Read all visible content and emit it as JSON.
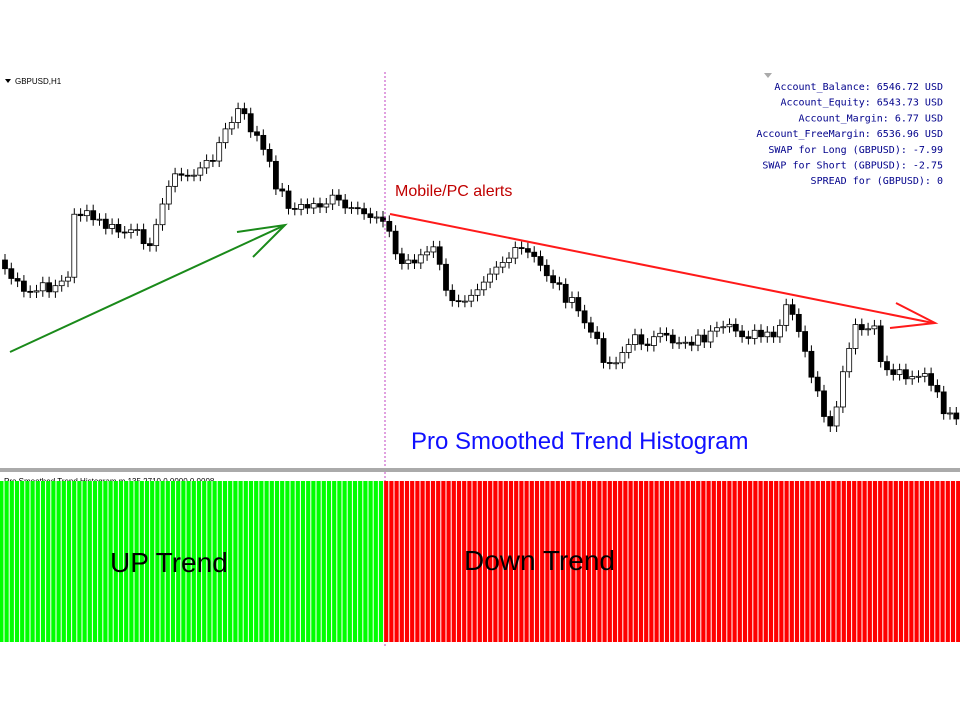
{
  "symbol": "GBPUSD,H1",
  "account": [
    "Account_Balance: 6546.72 USD",
    "Account_Equity: 6543.73 USD",
    "Account_Margin: 6.77 USD",
    "Account_FreeMargin: 6536.96 USD",
    "SWAP for Long (GBPUSD): -7.99",
    "SWAP for Short (GBPUSD): -2.75",
    "SPREAD for (GBPUSD): 0"
  ],
  "annotations": {
    "alerts": "Mobile/PC alerts",
    "indicator_title": "Pro Smoothed Trend Histogram"
  },
  "indicator": {
    "header": "Pro Smoothed Trend Histogram m 135.2710 0.0000 0.0008",
    "up_label": "UP Trend",
    "down_label": "Down Trend"
  }
}
